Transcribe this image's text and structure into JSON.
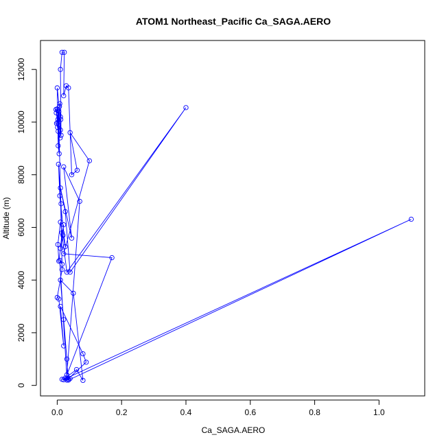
{
  "chart_data": {
    "type": "line",
    "title": "ATOM1 Northeast_Pacific Ca_SAGA.AERO",
    "xlabel": "Ca_SAGA.AERO",
    "ylabel": "Altitude (m)",
    "xlim": [
      -0.052,
      1.142
    ],
    "ylim": [
      -400,
      13100
    ],
    "xticks": [
      0.0,
      0.2,
      0.4,
      0.6,
      0.8,
      1.0
    ],
    "xtick_labels": [
      "0.0",
      "0.2",
      "0.4",
      "0.6",
      "0.8",
      "1.0"
    ],
    "yticks": [
      0,
      2000,
      4000,
      6000,
      8000,
      10000,
      12000
    ],
    "ytick_labels": [
      "0",
      "2000",
      "4000",
      "6000",
      "8000",
      "10000",
      "12000"
    ],
    "grid": false,
    "colors": {
      "series": "#0000ff",
      "axes": "#000000",
      "background": "#ffffff"
    },
    "marker": "open-circle",
    "series": [
      {
        "points": [
          [
            0.0,
            10500
          ],
          [
            -0.003,
            10350
          ],
          [
            0.002,
            10100
          ],
          [
            -0.002,
            9950
          ],
          [
            0.001,
            9800
          ],
          [
            0.003,
            9650
          ],
          [
            0.005,
            10400
          ],
          [
            0.008,
            10700
          ],
          [
            0.004,
            10300
          ],
          [
            0.01,
            9700
          ],
          [
            0.012,
            9500
          ],
          [
            0.01,
            12000
          ],
          [
            0.015,
            12650
          ],
          [
            0.022,
            12650
          ],
          [
            0.02,
            11000
          ],
          [
            0.028,
            11380
          ],
          [
            0.035,
            11300
          ],
          [
            0.045,
            8000
          ],
          [
            0.062,
            8170
          ],
          [
            0.04,
            9600
          ],
          [
            0.1,
            8530
          ],
          [
            0.02,
            5000
          ],
          [
            0.17,
            4850
          ],
          [
            0.03,
            400
          ],
          [
            0.07,
            6990
          ],
          [
            0.02,
            8300
          ],
          [
            0.045,
            5590
          ],
          [
            0.01,
            7500
          ],
          [
            0.025,
            6600
          ],
          [
            0.04,
            4300
          ],
          [
            0.4,
            10550
          ],
          [
            0.03,
            4300
          ],
          [
            0.01,
            6200
          ],
          [
            0.002,
            5350
          ],
          [
            0.005,
            4720
          ],
          [
            0.02,
            6100
          ],
          [
            0.015,
            5800
          ],
          [
            0.01,
            5200
          ],
          [
            0.018,
            5700
          ],
          [
            0.025,
            5270
          ],
          [
            0.008,
            7200
          ],
          [
            0.004,
            8400
          ],
          [
            0.012,
            6900
          ],
          [
            0.015,
            4400
          ],
          [
            0.0,
            3340
          ],
          [
            0.005,
            3280
          ],
          [
            0.02,
            1500
          ],
          [
            0.01,
            3000
          ],
          [
            0.08,
            1200
          ],
          [
            0.09,
            880
          ],
          [
            0.03,
            200
          ],
          [
            0.02,
            210
          ],
          [
            0.015,
            230
          ],
          [
            0.04,
            260
          ],
          [
            0.035,
            240
          ],
          [
            0.025,
            280
          ],
          [
            0.06,
            600
          ],
          [
            0.08,
            190
          ],
          [
            0.05,
            3500
          ],
          [
            0.01,
            4000
          ],
          [
            0.03,
            1000
          ],
          [
            0.02,
            2500
          ],
          [
            0.035,
            200
          ],
          [
            1.1,
            6310
          ],
          [
            0.03,
            280
          ],
          [
            0.008,
            4750
          ],
          [
            0.015,
            4600
          ],
          [
            0.005,
            10000
          ],
          [
            0.01,
            10200
          ],
          [
            0.0,
            11300
          ],
          [
            0.003,
            9100
          ],
          [
            0.006,
            8800
          ],
          [
            0.002,
            10450
          ],
          [
            -0.004,
            10480
          ],
          [
            0.001,
            9980
          ],
          [
            0.007,
            10600
          ],
          [
            0.009,
            9400
          ],
          [
            0.011,
            10100
          ]
        ]
      }
    ]
  }
}
